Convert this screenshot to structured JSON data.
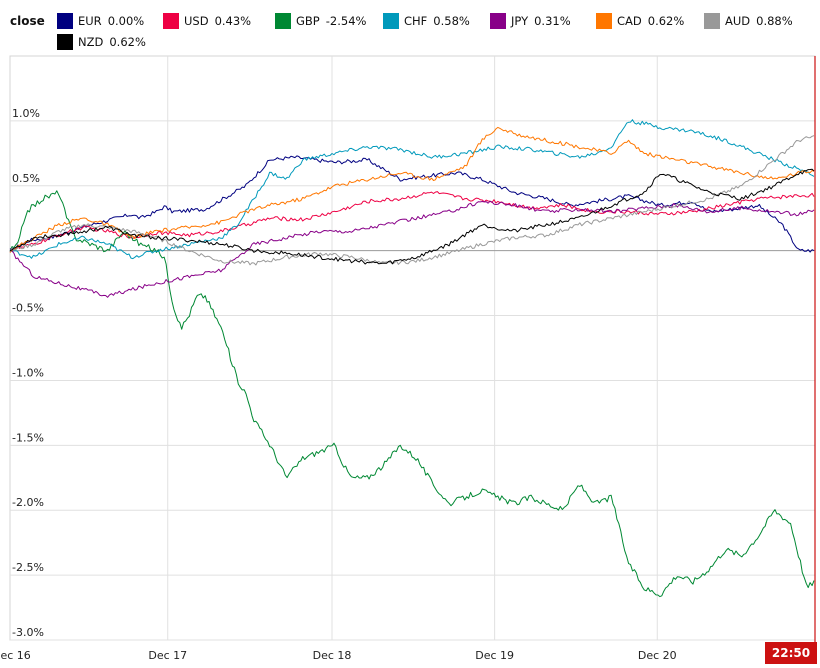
{
  "legend_title": "close",
  "badge": "22:50",
  "chart_data": {
    "type": "line",
    "x_tick_labels": [
      "Dec 16",
      "Dec 17",
      "Dec 18",
      "Dec 19",
      "Dec 20"
    ],
    "y_tick_labels": [
      "1.0%",
      "0.5%",
      "",
      "-0.5%",
      "-1.0%",
      "-1.5%",
      "-2.0%",
      "-2.5%",
      "-3.0%"
    ],
    "ylim": [
      -3.0,
      1.5
    ],
    "grid": true,
    "legend_placement": "top",
    "series": [
      {
        "name": "EUR",
        "label": "0.00%",
        "color": "#000080",
        "x": [
          0,
          0.12,
          0.25,
          0.35,
          0.5,
          0.62,
          0.75,
          0.8,
          0.9,
          0.95,
          1.0,
          1.2,
          1.45,
          1.6,
          1.75,
          2.0,
          2.2,
          2.4,
          2.6,
          2.75,
          2.9,
          3.1,
          3.3,
          3.45,
          3.6,
          3.8,
          4.0,
          4.2,
          4.3,
          4.45,
          4.6,
          4.75,
          4.85,
          4.95
        ],
        "y": [
          0.0,
          0.08,
          0.1,
          0.14,
          0.2,
          0.24,
          0.28,
          0.25,
          0.3,
          0.34,
          0.3,
          0.32,
          0.5,
          0.7,
          0.72,
          0.68,
          0.7,
          0.55,
          0.58,
          0.6,
          0.55,
          0.45,
          0.4,
          0.35,
          0.38,
          0.42,
          0.35,
          0.38,
          0.3,
          0.32,
          0.35,
          0.2,
          0.0,
          0.0
        ]
      },
      {
        "name": "USD",
        "label": "0.43%",
        "color": "#ee0044",
        "x": [
          0,
          0.15,
          0.3,
          0.45,
          0.6,
          0.75,
          0.9,
          1.1,
          1.3,
          1.45,
          1.6,
          1.8,
          2.0,
          2.2,
          2.4,
          2.6,
          2.8,
          3.0,
          3.2,
          3.4,
          3.6,
          3.8,
          4.0,
          4.2,
          4.4,
          4.6,
          4.8,
          4.95
        ],
        "y": [
          0.0,
          0.05,
          0.12,
          0.18,
          0.15,
          0.1,
          0.14,
          0.12,
          0.15,
          0.2,
          0.25,
          0.24,
          0.3,
          0.38,
          0.4,
          0.45,
          0.4,
          0.38,
          0.33,
          0.35,
          0.3,
          0.3,
          0.28,
          0.3,
          0.35,
          0.4,
          0.42,
          0.43
        ]
      },
      {
        "name": "GBP",
        "label": "-2.54%",
        "color": "#008833",
        "x": [
          0,
          0.05,
          0.1,
          0.2,
          0.3,
          0.35,
          0.4,
          0.5,
          0.6,
          0.7,
          0.8,
          0.9,
          0.95,
          1.0,
          1.05,
          1.1,
          1.15,
          1.2,
          1.3,
          1.4,
          1.45,
          1.5,
          1.6,
          1.7,
          1.8,
          1.9,
          2.0,
          2.05,
          2.1,
          2.2,
          2.3,
          2.4,
          2.5,
          2.6,
          2.7,
          2.8,
          2.9,
          3.0,
          3.1,
          3.2,
          3.3,
          3.4,
          3.5,
          3.6,
          3.7,
          3.8,
          3.9,
          4.0,
          4.1,
          4.2,
          4.3,
          4.4,
          4.5,
          4.6,
          4.7,
          4.8,
          4.85,
          4.9,
          4.95
        ],
        "y": [
          0.0,
          0.05,
          0.3,
          0.4,
          0.45,
          0.25,
          0.1,
          0.05,
          0.0,
          0.15,
          0.05,
          0.0,
          -0.05,
          -0.4,
          -0.6,
          -0.5,
          -0.35,
          -0.35,
          -0.6,
          -1.0,
          -1.1,
          -1.3,
          -1.5,
          -1.75,
          -1.6,
          -1.55,
          -1.5,
          -1.65,
          -1.75,
          -1.75,
          -1.65,
          -1.5,
          -1.6,
          -1.8,
          -1.95,
          -1.9,
          -1.85,
          -1.9,
          -1.95,
          -1.9,
          -1.95,
          -2.0,
          -1.8,
          -1.95,
          -1.9,
          -2.4,
          -2.6,
          -2.65,
          -2.5,
          -2.55,
          -2.45,
          -2.3,
          -2.35,
          -2.2,
          -2.0,
          -2.1,
          -2.35,
          -2.6,
          -2.54
        ]
      },
      {
        "name": "CHF",
        "label": "0.58%",
        "color": "#0099bb",
        "x": [
          0,
          0.15,
          0.3,
          0.45,
          0.6,
          0.75,
          0.9,
          1.1,
          1.3,
          1.4,
          1.5,
          1.6,
          1.7,
          1.8,
          2.0,
          2.2,
          2.4,
          2.6,
          2.8,
          3.0,
          3.2,
          3.4,
          3.5,
          3.6,
          3.7,
          3.8,
          3.9,
          4.0,
          4.2,
          4.4,
          4.6,
          4.8,
          4.95
        ],
        "y": [
          0.0,
          -0.05,
          0.05,
          0.1,
          0.05,
          -0.05,
          0.0,
          0.05,
          0.1,
          0.2,
          0.4,
          0.6,
          0.55,
          0.7,
          0.75,
          0.8,
          0.78,
          0.72,
          0.75,
          0.8,
          0.78,
          0.74,
          0.72,
          0.75,
          0.8,
          1.0,
          0.98,
          0.95,
          0.92,
          0.85,
          0.75,
          0.65,
          0.58
        ]
      },
      {
        "name": "JPY",
        "label": "0.31%",
        "color": "#880088",
        "x": [
          0,
          0.15,
          0.3,
          0.45,
          0.6,
          0.75,
          0.9,
          1.1,
          1.3,
          1.5,
          1.7,
          1.9,
          2.1,
          2.3,
          2.5,
          2.7,
          2.9,
          3.1,
          3.3,
          3.5,
          3.7,
          3.9,
          4.1,
          4.3,
          4.5,
          4.7,
          4.85,
          4.95
        ],
        "y": [
          0.0,
          -0.2,
          -0.25,
          -0.3,
          -0.35,
          -0.3,
          -0.25,
          -0.2,
          -0.15,
          0.05,
          0.1,
          0.15,
          0.15,
          0.2,
          0.25,
          0.3,
          0.38,
          0.35,
          0.3,
          0.32,
          0.3,
          0.33,
          0.35,
          0.3,
          0.33,
          0.3,
          0.28,
          0.31
        ]
      },
      {
        "name": "CAD",
        "label": "0.62%",
        "color": "#ff7700",
        "x": [
          0,
          0.15,
          0.3,
          0.45,
          0.6,
          0.75,
          0.9,
          1.1,
          1.3,
          1.45,
          1.6,
          1.8,
          2.0,
          2.2,
          2.4,
          2.6,
          2.8,
          2.9,
          3.0,
          3.1,
          3.3,
          3.5,
          3.7,
          3.8,
          3.9,
          4.1,
          4.3,
          4.5,
          4.7,
          4.85,
          4.95
        ],
        "y": [
          0.0,
          0.1,
          0.2,
          0.25,
          0.2,
          0.1,
          0.15,
          0.18,
          0.22,
          0.3,
          0.35,
          0.4,
          0.5,
          0.55,
          0.6,
          0.55,
          0.65,
          0.85,
          0.95,
          0.9,
          0.85,
          0.8,
          0.75,
          0.85,
          0.75,
          0.7,
          0.65,
          0.6,
          0.55,
          0.6,
          0.62
        ]
      },
      {
        "name": "AUD",
        "label": "0.88%",
        "color": "#999999",
        "x": [
          0,
          0.15,
          0.3,
          0.45,
          0.6,
          0.75,
          0.9,
          1.1,
          1.3,
          1.5,
          1.7,
          1.9,
          2.1,
          2.3,
          2.5,
          2.7,
          2.9,
          3.1,
          3.3,
          3.5,
          3.7,
          3.9,
          4.1,
          4.3,
          4.5,
          4.6,
          4.7,
          4.85,
          4.95
        ],
        "y": [
          0.0,
          0.05,
          0.15,
          0.2,
          0.18,
          0.15,
          0.1,
          0.0,
          -0.08,
          -0.1,
          -0.05,
          -0.02,
          -0.05,
          -0.1,
          -0.08,
          -0.02,
          0.05,
          0.1,
          0.12,
          0.2,
          0.25,
          0.3,
          0.35,
          0.4,
          0.5,
          0.6,
          0.7,
          0.85,
          0.88
        ]
      },
      {
        "name": "NZD",
        "label": "0.62%",
        "color": "#000000",
        "x": [
          0,
          0.15,
          0.3,
          0.45,
          0.6,
          0.75,
          0.9,
          1.1,
          1.3,
          1.5,
          1.7,
          1.9,
          2.1,
          2.3,
          2.5,
          2.7,
          2.9,
          3.1,
          3.3,
          3.5,
          3.7,
          3.9,
          4.0,
          4.1,
          4.3,
          4.5,
          4.7,
          4.85,
          4.95
        ],
        "y": [
          0.0,
          0.1,
          0.12,
          0.15,
          0.18,
          0.12,
          0.1,
          0.08,
          0.05,
          0.0,
          -0.02,
          -0.05,
          -0.08,
          -0.1,
          -0.05,
          0.05,
          0.2,
          0.15,
          0.2,
          0.25,
          0.35,
          0.45,
          0.6,
          0.55,
          0.45,
          0.4,
          0.5,
          0.6,
          0.62
        ]
      }
    ]
  }
}
